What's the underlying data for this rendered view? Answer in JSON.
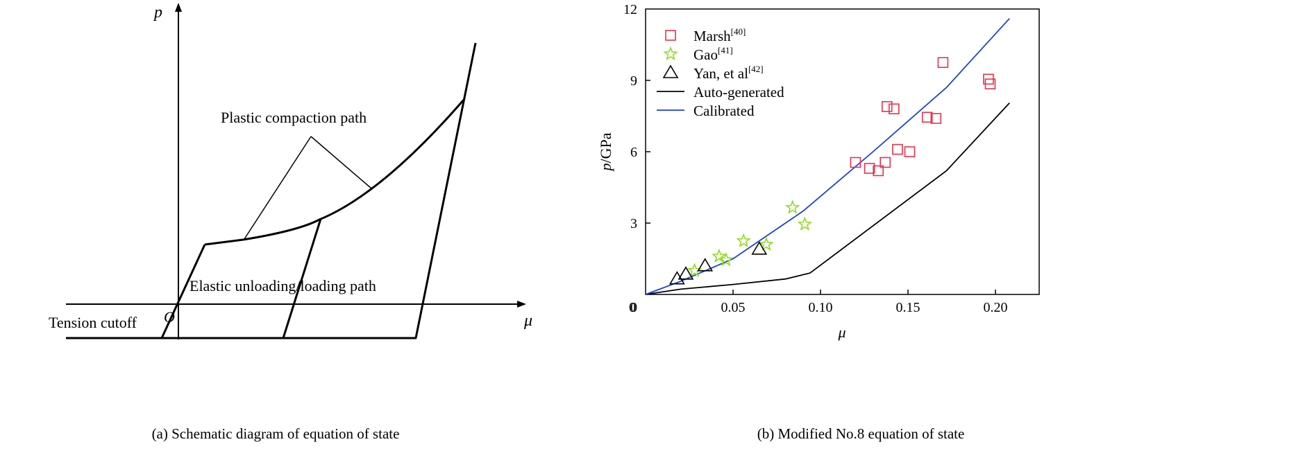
{
  "left_panel": {
    "caption": "(a) Schematic diagram of equation of state",
    "axis_p_label": "p",
    "axis_mu_label": "μ",
    "origin_label": "O",
    "labels": {
      "plastic": "Plastic compaction path",
      "elastic": "Elastic unloading/loading path",
      "tension": "Tension cutoff"
    }
  },
  "right_panel": {
    "caption": "(b) Modified No.8 equation of state",
    "colors": {
      "marsh": "#e8304a",
      "gao": "#8fdc1e",
      "yan": "#000000",
      "auto": "#000000",
      "calibrated": "#1a3fe0"
    }
  },
  "chart_data": {
    "type": "scatter",
    "xlabel": "μ",
    "ylabel_main": "p",
    "ylabel_unit": "/GPa",
    "xlim": [
      0,
      0.225
    ],
    "ylim": [
      0,
      12
    ],
    "x_ticks": [
      "0",
      "0.05",
      "0.10",
      "0.15",
      "0.20"
    ],
    "x_tick_values": [
      0,
      0.05,
      0.1,
      0.15,
      0.2
    ],
    "y_ticks": [
      "0",
      "3",
      "6",
      "9",
      "12"
    ],
    "y_tick_values": [
      0,
      3,
      6,
      9,
      12
    ],
    "legend": [
      {
        "key": "marsh",
        "name": "Marsh",
        "sup": "[40]",
        "marker": "square"
      },
      {
        "key": "gao",
        "name": "Gao",
        "sup": "[41]",
        "marker": "star"
      },
      {
        "key": "yan",
        "name": "Yan, et al",
        "sup": "[42]",
        "marker": "triangle"
      },
      {
        "key": "auto",
        "name": "Auto-generated",
        "sup": "",
        "marker": "line"
      },
      {
        "key": "calibrated",
        "name": "Calibrated",
        "sup": "",
        "marker": "line"
      }
    ],
    "series": [
      {
        "key": "marsh",
        "name": "Marsh[40]",
        "kind": "scatter",
        "points": [
          [
            0.12,
            5.55
          ],
          [
            0.128,
            5.3
          ],
          [
            0.133,
            5.2
          ],
          [
            0.137,
            5.55
          ],
          [
            0.144,
            6.1
          ],
          [
            0.151,
            6.0
          ],
          [
            0.138,
            7.9
          ],
          [
            0.142,
            7.8
          ],
          [
            0.161,
            7.45
          ],
          [
            0.166,
            7.4
          ],
          [
            0.17,
            9.75
          ],
          [
            0.196,
            9.05
          ],
          [
            0.197,
            8.85
          ]
        ]
      },
      {
        "key": "gao",
        "name": "Gao[41]",
        "kind": "scatter",
        "points": [
          [
            0.028,
            1.0
          ],
          [
            0.042,
            1.6
          ],
          [
            0.046,
            1.45
          ],
          [
            0.056,
            2.25
          ],
          [
            0.069,
            2.1
          ],
          [
            0.084,
            3.65
          ],
          [
            0.091,
            2.95
          ]
        ]
      },
      {
        "key": "yan",
        "name": "Yan, et al[42]",
        "kind": "scatter",
        "points": [
          [
            0.018,
            0.65
          ],
          [
            0.023,
            0.85
          ],
          [
            0.034,
            1.2
          ],
          [
            0.065,
            1.9
          ]
        ]
      },
      {
        "key": "auto",
        "name": "Auto-generated",
        "kind": "line",
        "points": [
          [
            0,
            0
          ],
          [
            0.02,
            0.22
          ],
          [
            0.05,
            0.42
          ],
          [
            0.08,
            0.65
          ],
          [
            0.094,
            0.9
          ],
          [
            0.172,
            5.2
          ],
          [
            0.208,
            8.05
          ]
        ]
      },
      {
        "key": "calibrated",
        "name": "Calibrated",
        "kind": "line",
        "points": [
          [
            0,
            0
          ],
          [
            0.02,
            0.55
          ],
          [
            0.05,
            1.5
          ],
          [
            0.09,
            3.5
          ],
          [
            0.13,
            6.0
          ],
          [
            0.172,
            8.7
          ],
          [
            0.208,
            11.6
          ]
        ]
      }
    ]
  }
}
